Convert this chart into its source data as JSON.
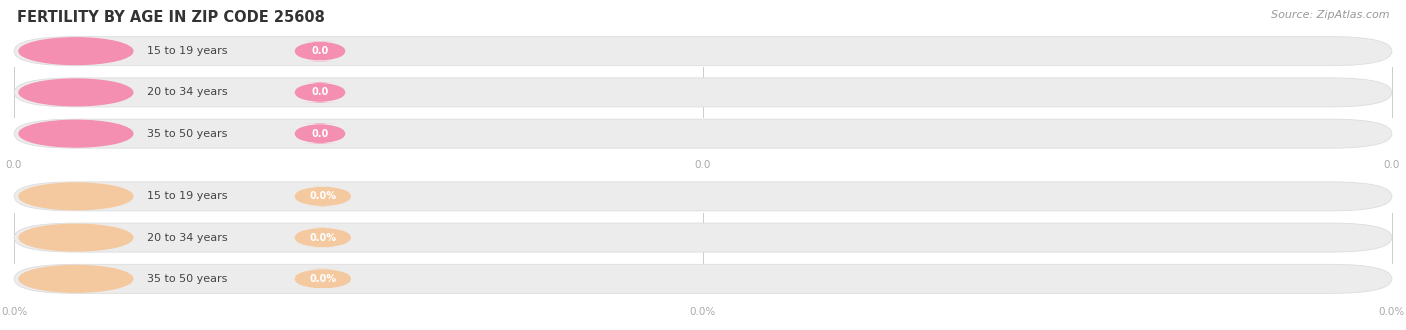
{
  "title": "FERTILITY BY AGE IN ZIP CODE 25608",
  "source_text": "Source: ZipAtlas.com",
  "background_color": "#ffffff",
  "pink_color": "#f48fb1",
  "orange_color": "#f5c9a0",
  "bar_bg_color": "#ececec",
  "bar_edge_color": "#dddddd",
  "label_color": "#444444",
  "tick_color": "#aaaaaa",
  "title_color": "#333333",
  "source_color": "#999999",
  "top_categories": [
    "15 to 19 years",
    "20 to 34 years",
    "35 to 50 years"
  ],
  "bot_categories": [
    "15 to 19 years",
    "20 to 34 years",
    "35 to 50 years"
  ],
  "top_values": [
    "0.0",
    "0.0",
    "0.0"
  ],
  "bot_values": [
    "0.0%",
    "0.0%",
    "0.0%"
  ],
  "top_ticks": [
    "0.0",
    "0.0",
    "0.0"
  ],
  "bot_ticks": [
    "0.0%",
    "0.0%",
    "0.0%"
  ],
  "title_fontsize": 10.5,
  "source_fontsize": 8,
  "label_fontsize": 8,
  "tick_fontsize": 7.5,
  "badge_fontsize": 7
}
